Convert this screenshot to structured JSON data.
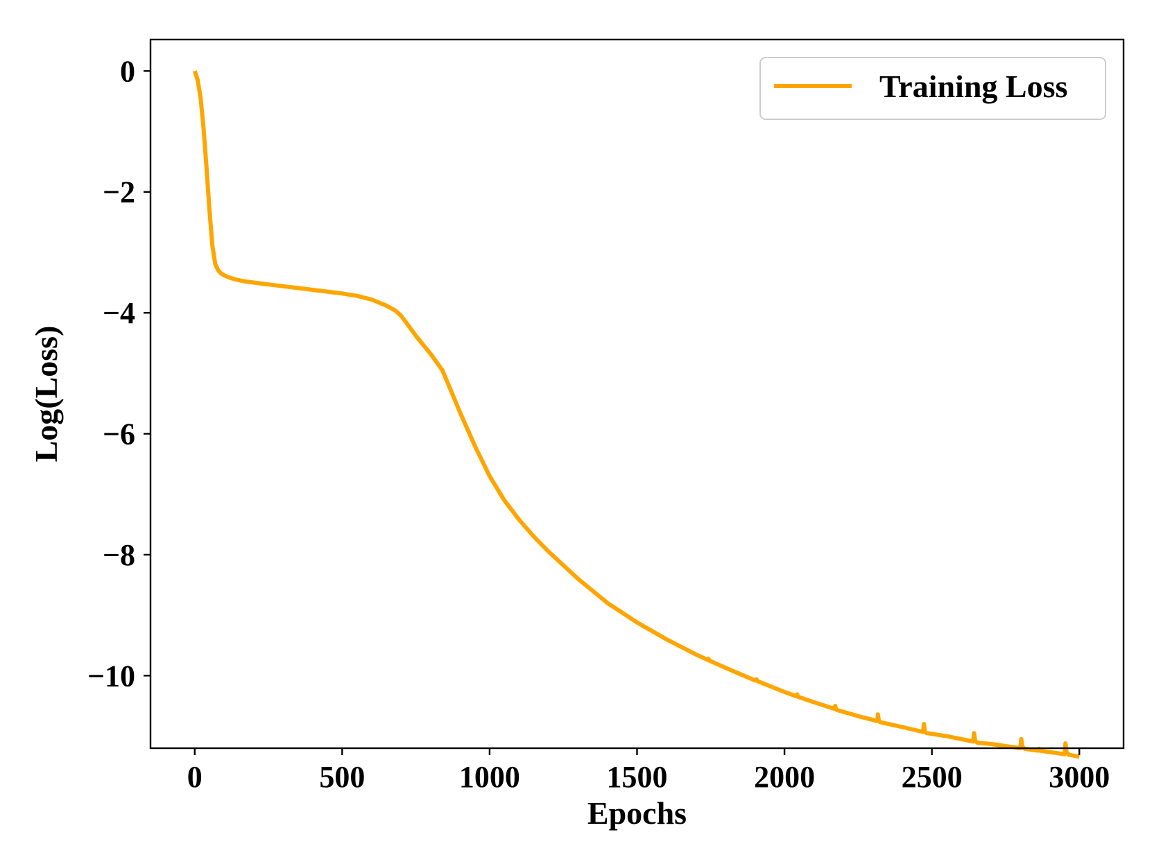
{
  "chart_data": {
    "type": "line",
    "title": "",
    "xlabel": "Epochs",
    "ylabel": "Log(Loss)",
    "xlim": [
      -150,
      3150
    ],
    "ylim": [
      -11.2,
      0.52
    ],
    "xticks": [
      0,
      500,
      1000,
      1500,
      2000,
      2500,
      3000
    ],
    "xtick_labels": [
      "0",
      "500",
      "1000",
      "1500",
      "2000",
      "2500",
      "3000"
    ],
    "yticks": [
      0,
      -2,
      -4,
      -6,
      -8,
      -10
    ],
    "ytick_labels": [
      "0",
      "−2",
      "−4",
      "−6",
      "−8",
      "−10"
    ],
    "grid": false,
    "legend": {
      "placement": "top-right",
      "entries": [
        "Training Loss"
      ]
    },
    "colors": {
      "line": "#FFA500",
      "axes": "#000000",
      "legend_border": "#cccccc"
    },
    "series": [
      {
        "name": "Training Loss",
        "x": [
          0,
          10,
          20,
          30,
          40,
          50,
          60,
          70,
          80,
          90,
          100,
          120,
          140,
          170,
          200,
          250,
          300,
          350,
          400,
          450,
          500,
          550,
          600,
          650,
          680,
          700,
          720,
          750,
          800,
          840,
          870,
          900,
          950,
          1000,
          1050,
          1100,
          1150,
          1200,
          1300,
          1400,
          1500,
          1600,
          1700,
          1740,
          1742,
          1745,
          1800,
          1900,
          1905,
          1908,
          2000,
          2040,
          2043,
          2046,
          2100,
          2170,
          2172,
          2175,
          2180,
          2250,
          2315,
          2317,
          2320,
          2325,
          2400,
          2470,
          2473,
          2476,
          2482,
          2550,
          2640,
          2643,
          2647,
          2655,
          2700,
          2800,
          2803,
          2807,
          2815,
          2860,
          2863,
          2866,
          2950,
          2953,
          2957,
          2965,
          3000
        ],
        "y": [
          0.0,
          -0.15,
          -0.45,
          -0.95,
          -1.6,
          -2.3,
          -2.9,
          -3.2,
          -3.3,
          -3.35,
          -3.38,
          -3.42,
          -3.45,
          -3.48,
          -3.5,
          -3.53,
          -3.56,
          -3.59,
          -3.62,
          -3.65,
          -3.68,
          -3.72,
          -3.78,
          -3.88,
          -3.96,
          -4.05,
          -4.18,
          -4.38,
          -4.68,
          -4.95,
          -5.3,
          -5.65,
          -6.2,
          -6.7,
          -7.1,
          -7.42,
          -7.7,
          -7.95,
          -8.4,
          -8.8,
          -9.12,
          -9.4,
          -9.65,
          -9.74,
          -9.72,
          -9.75,
          -9.87,
          -10.08,
          -10.06,
          -10.09,
          -10.27,
          -10.34,
          -10.31,
          -10.35,
          -10.44,
          -10.55,
          -10.5,
          -10.56,
          -10.57,
          -10.67,
          -10.75,
          -10.64,
          -10.74,
          -10.77,
          -10.85,
          -10.93,
          -10.8,
          -10.92,
          -10.95,
          -11.0,
          -11.09,
          -10.95,
          -11.08,
          -11.11,
          -11.13,
          -11.2,
          -11.05,
          -11.18,
          -11.21,
          -11.24,
          -11.21,
          -11.24,
          -11.3,
          -11.12,
          -11.27,
          -11.31,
          -11.34
        ]
      }
    ]
  }
}
